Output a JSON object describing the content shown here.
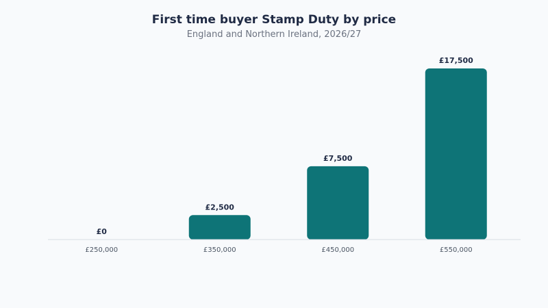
{
  "chart_data": {
    "type": "bar",
    "title": "First time buyer Stamp Duty by price",
    "subtitle": "England and Northern Ireland, 2026/27",
    "categories": [
      "£250,000",
      "£350,000",
      "£450,000",
      "£550,000"
    ],
    "values": [
      0,
      2500,
      7500,
      17500
    ],
    "data_labels": [
      "£0",
      "£2,500",
      "£7,500",
      "£17,500"
    ],
    "xlabel": "",
    "ylabel": "",
    "ylim": [
      0,
      17500
    ],
    "grid": false,
    "bar_color": "#0e7477",
    "axis_color": "#d9dee5"
  }
}
